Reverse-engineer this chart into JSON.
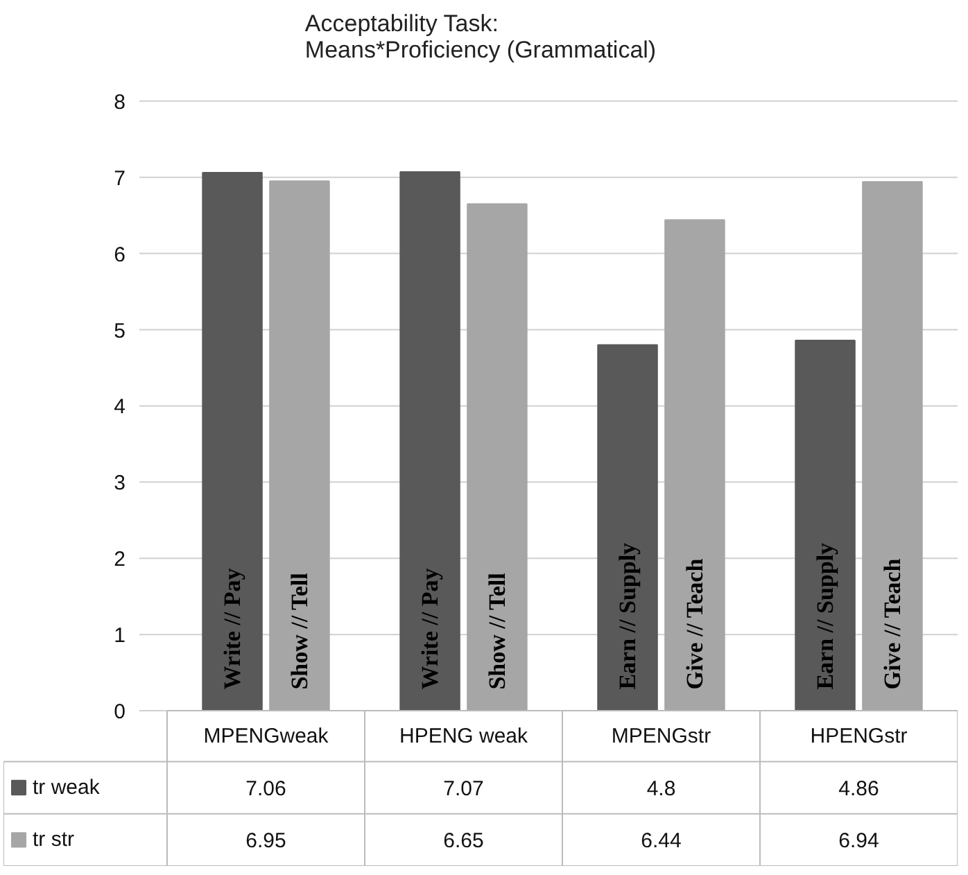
{
  "chart_data": {
    "type": "bar",
    "title": "Acceptability Task:\nMeans*Proficiency (Grammatical)",
    "categories": [
      "MPENGweak",
      "HPENG weak",
      "MPENGstr",
      "HPENGstr"
    ],
    "series": [
      {
        "name": "tr weak",
        "color": "#595959",
        "values": [
          7.06,
          7.07,
          4.8,
          4.86
        ]
      },
      {
        "name": "tr str",
        "color": "#a6a6a6",
        "values": [
          6.95,
          6.65,
          6.44,
          6.94
        ]
      }
    ],
    "annotations": [
      "Write // Pay",
      "Show // Tell",
      "Write // Pay",
      "Show // Tell",
      "Earn // Supply",
      "Give // Teach",
      "Earn // Supply",
      "Give // Teach"
    ],
    "ylim": [
      0,
      8
    ],
    "yticks": [
      0,
      1,
      2,
      3,
      4,
      5,
      6,
      7,
      8
    ],
    "grid": "y",
    "legend": "bottom",
    "data_labels": true
  }
}
